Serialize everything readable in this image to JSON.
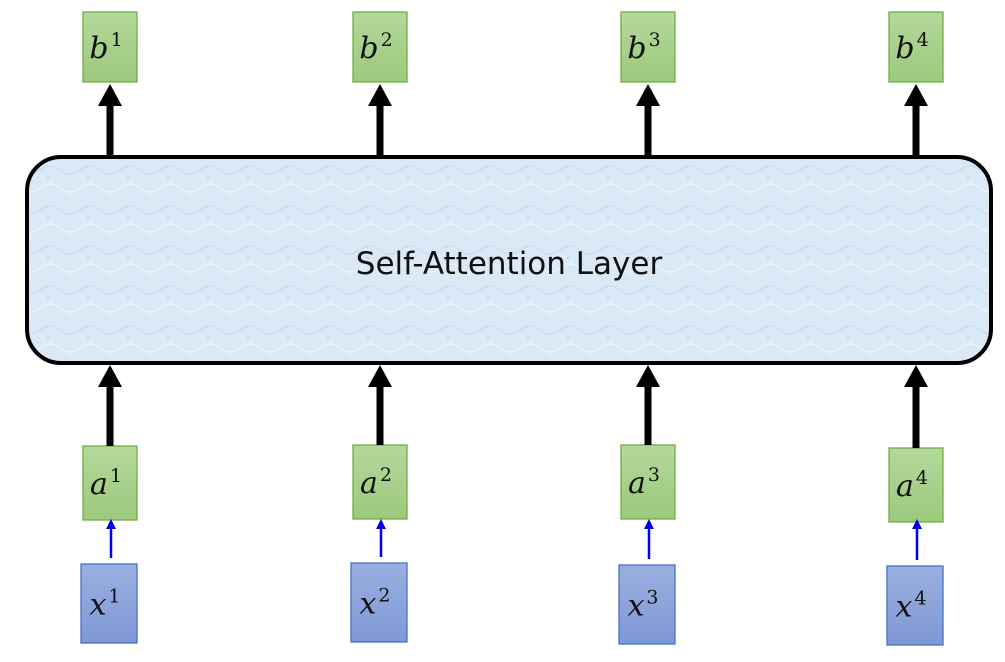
{
  "layer": {
    "label": "Self-Attention Layer"
  },
  "outputs": [
    {
      "base": "b",
      "sup": "1"
    },
    {
      "base": "b",
      "sup": "2"
    },
    {
      "base": "b",
      "sup": "3"
    },
    {
      "base": "b",
      "sup": "4"
    }
  ],
  "inputs": [
    {
      "base": "a",
      "sup": "1"
    },
    {
      "base": "a",
      "sup": "2"
    },
    {
      "base": "a",
      "sup": "3"
    },
    {
      "base": "a",
      "sup": "4"
    }
  ],
  "raw_inputs": [
    {
      "base": "x",
      "sup": "1"
    },
    {
      "base": "x",
      "sup": "2"
    },
    {
      "base": "x",
      "sup": "3"
    },
    {
      "base": "x",
      "sup": "4"
    }
  ],
  "colors": {
    "green_fill": "#a9d18e",
    "green_stroke": "#70ad47",
    "blue_fill": "#8fa6dc",
    "blue_stroke": "#4472c4",
    "layer_fill": "#dbe9f7",
    "arrow_black": "#000000",
    "arrow_blue": "#0000ee"
  }
}
